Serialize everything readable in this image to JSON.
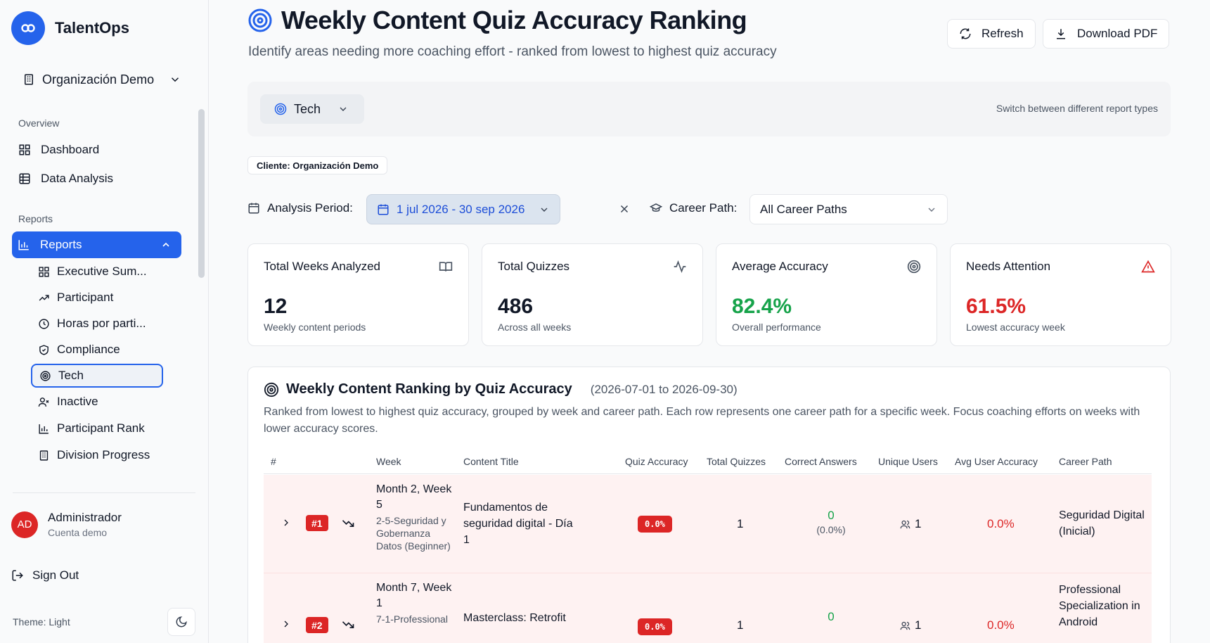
{
  "app": {
    "name": "TalentOps"
  },
  "org": {
    "name": "Organización Demo"
  },
  "sidebar": {
    "overview_label": "Overview",
    "overview_items": [
      {
        "label": "Dashboard",
        "icon": "grid-icon"
      },
      {
        "label": "Data Analysis",
        "icon": "table-icon"
      }
    ],
    "reports_label": "Reports",
    "reports_item": {
      "label": "Reports",
      "icon": "bar-chart-icon"
    },
    "report_subitems": [
      {
        "label": "Executive Sum...",
        "icon": "grid-icon"
      },
      {
        "label": "Participant",
        "icon": "trending-up-icon"
      },
      {
        "label": "Horas por parti...",
        "icon": "clock-icon"
      },
      {
        "label": "Compliance",
        "icon": "shield-check-icon"
      },
      {
        "label": "Tech",
        "icon": "target-icon",
        "selected": true
      },
      {
        "label": "Inactive",
        "icon": "user-x-icon"
      },
      {
        "label": "Participant Rank",
        "icon": "bar-chart-icon"
      },
      {
        "label": "Division Progress",
        "icon": "building-icon"
      }
    ],
    "user": {
      "initials": "AD",
      "name": "Administrador",
      "subtitle": "Cuenta demo"
    },
    "sign_out": "Sign Out",
    "theme": "Theme: Light"
  },
  "header": {
    "title": "Weekly Content Quiz Accuracy Ranking",
    "subtitle": "Identify areas needing more coaching effort - ranked from lowest to highest quiz accuracy",
    "refresh": "Refresh",
    "download": "Download PDF"
  },
  "switcher": {
    "selected": "Tech",
    "hint": "Switch between different report types"
  },
  "client_badge": "Cliente: Organización Demo",
  "filters": {
    "period_label": "Analysis Period:",
    "period_value": "1 jul 2026 - 30 sep 2026",
    "career_label": "Career Path:",
    "career_value": "All Career Paths"
  },
  "stats": [
    {
      "title": "Total Weeks Analyzed",
      "value": "12",
      "sub": "Weekly content periods",
      "icon": "book-open-icon",
      "tone": "default"
    },
    {
      "title": "Total Quizzes",
      "value": "486",
      "sub": "Across all weeks",
      "icon": "activity-icon",
      "tone": "default"
    },
    {
      "title": "Average Accuracy",
      "value": "82.4%",
      "sub": "Overall performance",
      "icon": "target-icon",
      "tone": "green"
    },
    {
      "title": "Needs Attention",
      "value": "61.5%",
      "sub": "Lowest accuracy week",
      "icon": "alert-triangle-icon",
      "tone": "red"
    }
  ],
  "ranking": {
    "title": "Weekly Content Ranking by Quiz Accuracy",
    "range": "(2026-07-01 to 2026-09-30)",
    "description": "Ranked from lowest to highest quiz accuracy, grouped by week and career path. Each row represents one career path for a specific week. Focus coaching efforts on weeks with lower accuracy scores.",
    "columns": [
      "#",
      "Week",
      "Content Title",
      "Quiz Accuracy",
      "Total Quizzes",
      "Correct Answers",
      "Unique Users",
      "Avg User Accuracy",
      "Career Path"
    ],
    "rows": [
      {
        "rank": "#1",
        "week": "Month 2, Week 5",
        "week_sub": "2-5-Seguridad y Gobernanza Datos (Beginner)",
        "content_title": "Fundamentos de seguridad digital - Día 1",
        "quiz_accuracy": "0.0%",
        "total_quizzes": "1",
        "correct": "0",
        "correct_pct": "(0.0%)",
        "unique_users": "1",
        "avg_user_accuracy": "0.0%",
        "career_path": "Seguridad Digital (Inicial)"
      },
      {
        "rank": "#2",
        "week": "Month 7, Week 1",
        "week_sub": "7-1-Professional",
        "content_title": "Masterclass: Retrofit",
        "quiz_accuracy": "0.0%",
        "total_quizzes": "1",
        "correct": "0",
        "correct_pct": "",
        "unique_users": "1",
        "avg_user_accuracy": "0.0%",
        "career_path": "Professional Specialization in Android"
      }
    ]
  }
}
